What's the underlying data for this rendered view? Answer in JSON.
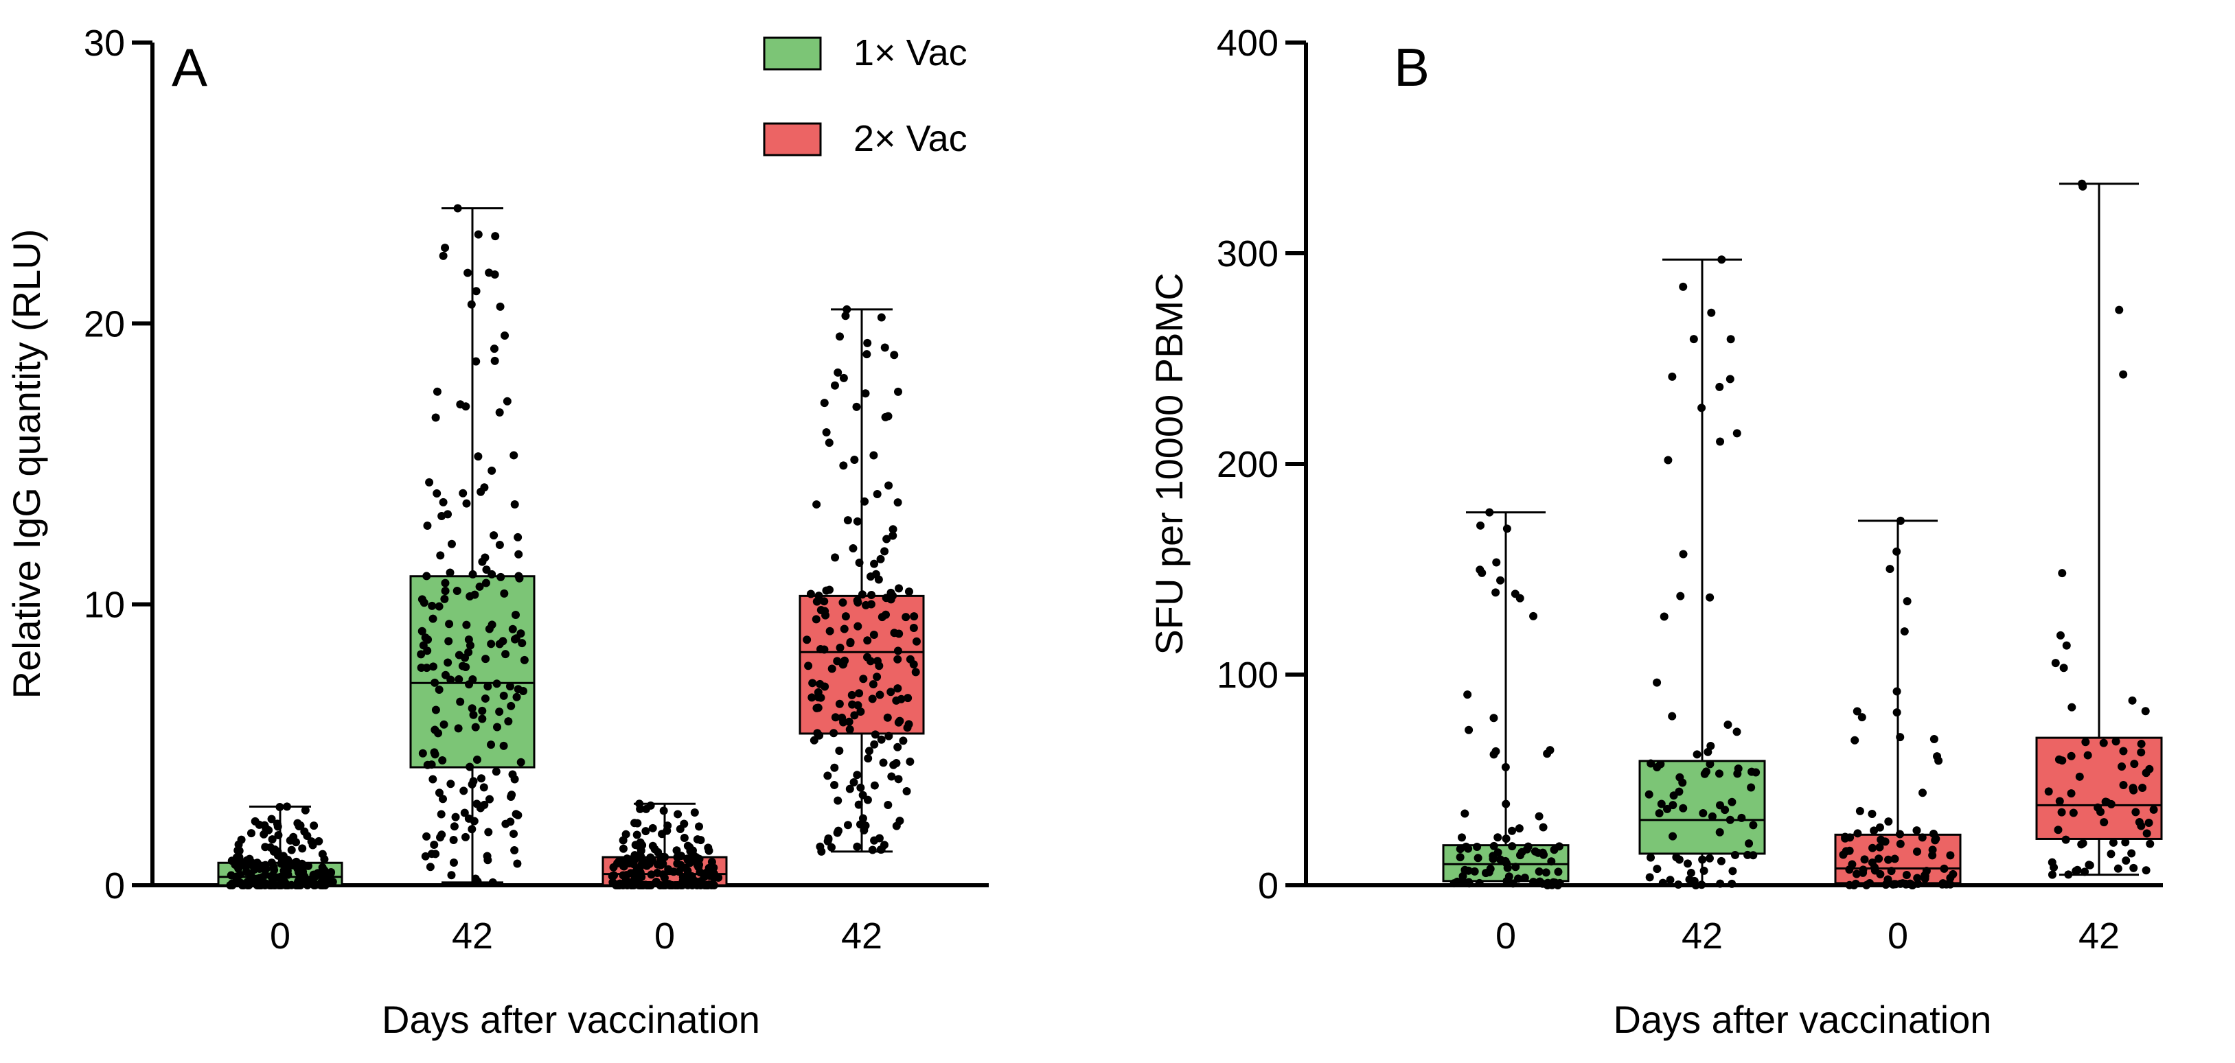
{
  "chart_data": [
    {
      "panel": "A",
      "type": "box",
      "ylabel": "Relative IgG quantity (RLU)",
      "xlabel": "Days after vaccination",
      "ylim": [
        0,
        30
      ],
      "yticks": [
        "0",
        "10",
        "20",
        "30"
      ],
      "groups": [
        {
          "category": "0",
          "series": "1× Vac",
          "min": 0,
          "q1": 0,
          "median": 0.3,
          "q3": 0.8,
          "max": 2.8,
          "n_points": 190
        },
        {
          "category": "42",
          "series": "1× Vac",
          "min": 0.1,
          "q1": 4.2,
          "median": 7.2,
          "q3": 11.0,
          "max": 24.1,
          "n_points": 190
        },
        {
          "category": "0",
          "series": "2× Vac",
          "min": 0,
          "q1": 0,
          "median": 0.4,
          "q3": 1.0,
          "max": 2.9,
          "n_points": 190
        },
        {
          "category": "42",
          "series": "2× Vac",
          "min": 1.2,
          "q1": 5.4,
          "median": 8.3,
          "q3": 10.3,
          "max": 20.5,
          "n_points": 190
        }
      ]
    },
    {
      "panel": "B",
      "type": "box",
      "ylabel": "SFU per 10000 PBMC",
      "xlabel": "Days after vaccination",
      "ylim": [
        0,
        400
      ],
      "yticks": [
        "0",
        "100",
        "200",
        "300",
        "400"
      ],
      "groups": [
        {
          "category": "0",
          "series": "1× Vac",
          "min": 0,
          "q1": 2,
          "median": 10,
          "q3": 19,
          "max": 177,
          "n_points": 90
        },
        {
          "category": "42",
          "series": "1× Vac",
          "min": 0,
          "q1": 15,
          "median": 31,
          "q3": 59,
          "max": 297,
          "n_points": 80
        },
        {
          "category": "0",
          "series": "2× Vac",
          "min": 0,
          "q1": 1,
          "median": 8,
          "q3": 24,
          "max": 173,
          "n_points": 90
        },
        {
          "category": "42",
          "series": "2× Vac",
          "min": 5,
          "q1": 22,
          "median": 38,
          "q3": 70,
          "max": 333,
          "n_points": 70
        }
      ]
    }
  ],
  "legend": [
    {
      "label": "1× Vac",
      "color": "#7cc576"
    },
    {
      "label": "2× Vac",
      "color": "#ec6464"
    }
  ],
  "colors": {
    "1× Vac": "#7cc576",
    "2× Vac": "#ec6464",
    "points": "#000000"
  }
}
